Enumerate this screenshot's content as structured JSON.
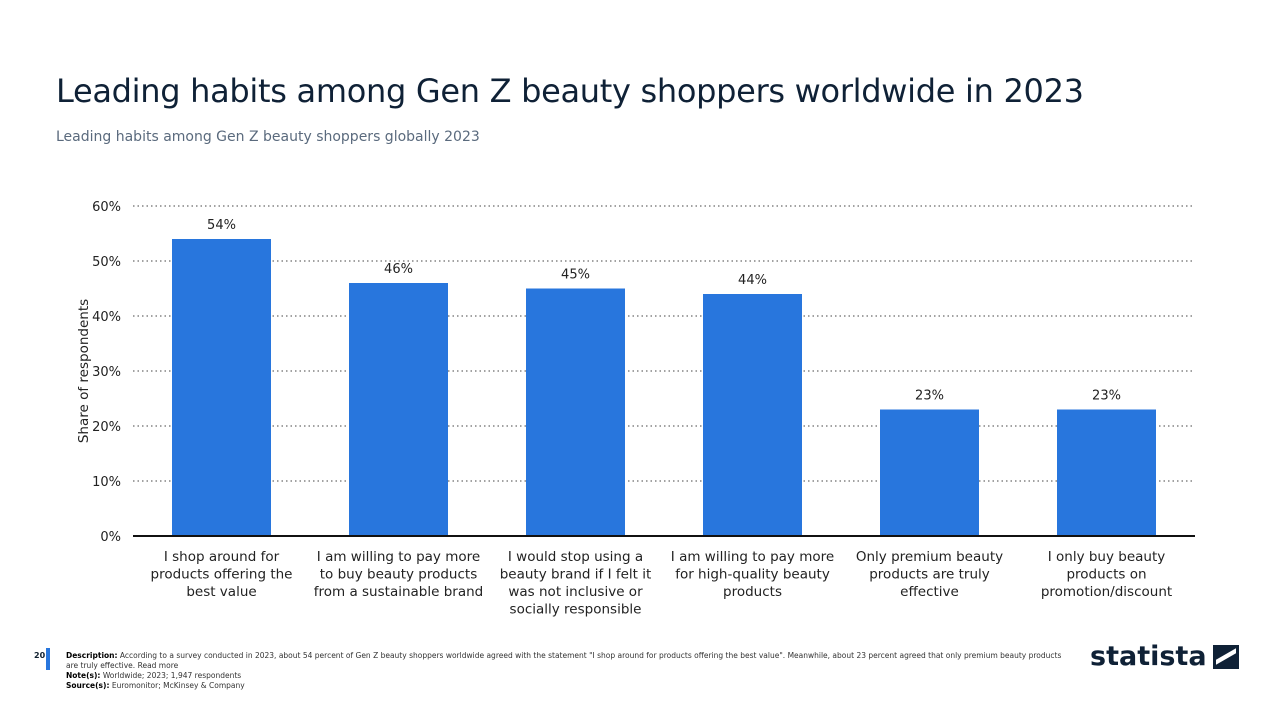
{
  "title": "Leading habits among Gen Z beauty shoppers worldwide in 2023",
  "subtitle": "Leading habits among Gen Z beauty shoppers globally 2023",
  "chart_data": {
    "type": "bar",
    "categories": [
      "I shop around for products offering the best value",
      "I am willing to pay more to buy beauty products from a sustainable brand",
      "I would stop using a beauty brand if I felt it was not inclusive or socially responsible",
      "I am willing to pay more for high-quality beauty products",
      "Only premium beauty products are truly effective",
      "I only buy beauty products on promotion/discount"
    ],
    "category_lines": [
      [
        "I shop around for",
        "products offering the",
        "best value"
      ],
      [
        "I am willing to pay more",
        "to buy beauty products",
        "from a sustainable brand"
      ],
      [
        "I would stop using a",
        "beauty brand if I felt it",
        "was not inclusive or",
        "socially responsible"
      ],
      [
        "I am willing to pay more",
        "for high-quality beauty",
        "products"
      ],
      [
        "Only premium beauty",
        "products are truly",
        "effective"
      ],
      [
        "I only buy beauty",
        "products on",
        "promotion/discount"
      ]
    ],
    "values": [
      54,
      46,
      45,
      44,
      23,
      23
    ],
    "data_labels": [
      "54%",
      "46%",
      "45%",
      "44%",
      "23%",
      "23%"
    ],
    "ylabel": "Share of respondents",
    "ylim": [
      0,
      60
    ],
    "yticks": [
      0,
      10,
      20,
      30,
      40,
      50,
      60
    ],
    "ytick_labels": [
      "0%",
      "10%",
      "20%",
      "30%",
      "40%",
      "50%",
      "60%"
    ],
    "grid": true,
    "bar_color": "#2876dd"
  },
  "footer": {
    "page": "20",
    "description_label": "Description:",
    "description": "According to a survey conducted in 2023, about 54 percent of Gen Z beauty shoppers worldwide agreed with the statement \"I shop around for products offering the best value\". Meanwhile, about 23 percent agreed that only premium beauty products are truly effective.",
    "read_more": "Read more",
    "notes_label": "Note(s):",
    "notes": "Worldwide; 2023; 1,947 respondents",
    "source_label": "Source(s):",
    "source": "Euromonitor; McKinsey & Company"
  },
  "logo": "statista"
}
